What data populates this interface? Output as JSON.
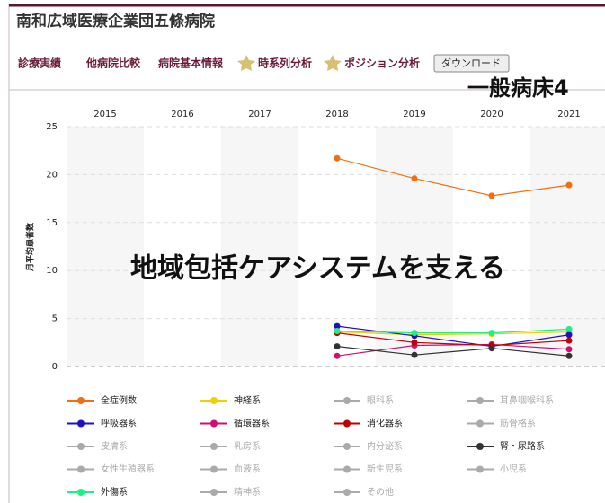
{
  "header": {
    "title": "南和広域医療企業団五條病院",
    "nav": [
      "診療実績",
      "他病院比較",
      "病院基本情報",
      "時系列分析",
      "ポジション分析"
    ],
    "button": "ダウンロード"
  },
  "overlay": {
    "top": "一般病床4",
    "center": "地域包括ケアシステムを支える"
  },
  "chart_data": {
    "type": "line",
    "ylabel": "月平均患者数",
    "categories": [
      "2015",
      "2016",
      "2017",
      "2018",
      "2019",
      "2020",
      "2021"
    ],
    "ylim": [
      0,
      25
    ],
    "yticks": [
      0,
      5,
      10,
      15,
      20,
      25
    ],
    "grid": true,
    "series": [
      {
        "name": "全症例数",
        "color": "#f07010",
        "visible": true,
        "values": [
          null,
          null,
          null,
          21.7,
          19.6,
          17.8,
          18.9
        ]
      },
      {
        "name": "神経系",
        "color": "#f0d000",
        "visible": true,
        "values": [
          null,
          null,
          null,
          3.6,
          3.3,
          3.4,
          3.6
        ]
      },
      {
        "name": "眼科系",
        "color": "#aaaaaa",
        "visible": false,
        "values": [
          null,
          null,
          null,
          null,
          null,
          null,
          null
        ]
      },
      {
        "name": "耳鼻咽喉科系",
        "color": "#aaaaaa",
        "visible": false,
        "values": [
          null,
          null,
          null,
          null,
          null,
          null,
          null
        ]
      },
      {
        "name": "呼吸器系",
        "color": "#2010c0",
        "visible": true,
        "values": [
          null,
          null,
          null,
          4.2,
          3.2,
          2.1,
          3.3
        ]
      },
      {
        "name": "循環器系",
        "color": "#d01070",
        "visible": true,
        "values": [
          null,
          null,
          null,
          1.1,
          2.2,
          2.3,
          1.8
        ]
      },
      {
        "name": "消化器系",
        "color": "#c00000",
        "visible": true,
        "values": [
          null,
          null,
          null,
          3.5,
          2.5,
          2.2,
          2.7
        ]
      },
      {
        "name": "筋骨格系",
        "color": "#aaaaaa",
        "visible": false,
        "values": [
          null,
          null,
          null,
          null,
          null,
          null,
          null
        ]
      },
      {
        "name": "皮膚系",
        "color": "#aaaaaa",
        "visible": false,
        "values": [
          null,
          null,
          null,
          null,
          null,
          null,
          null
        ]
      },
      {
        "name": "乳房系",
        "color": "#aaaaaa",
        "visible": false,
        "values": [
          null,
          null,
          null,
          null,
          null,
          null,
          null
        ]
      },
      {
        "name": "内分泌系",
        "color": "#aaaaaa",
        "visible": false,
        "values": [
          null,
          null,
          null,
          null,
          null,
          null,
          null
        ]
      },
      {
        "name": "腎・尿路系",
        "color": "#333333",
        "visible": true,
        "values": [
          null,
          null,
          null,
          2.1,
          1.2,
          1.9,
          1.1
        ]
      },
      {
        "name": "女性生殖器系",
        "color": "#aaaaaa",
        "visible": false,
        "values": [
          null,
          null,
          null,
          null,
          null,
          null,
          null
        ]
      },
      {
        "name": "血液系",
        "color": "#aaaaaa",
        "visible": false,
        "values": [
          null,
          null,
          null,
          null,
          null,
          null,
          null
        ]
      },
      {
        "name": "新生児系",
        "color": "#aaaaaa",
        "visible": false,
        "values": [
          null,
          null,
          null,
          null,
          null,
          null,
          null
        ]
      },
      {
        "name": "小児系",
        "color": "#aaaaaa",
        "visible": false,
        "values": [
          null,
          null,
          null,
          null,
          null,
          null,
          null
        ]
      },
      {
        "name": "外傷系",
        "color": "#20f080",
        "visible": true,
        "values": [
          null,
          null,
          null,
          3.7,
          3.5,
          3.5,
          3.9
        ]
      },
      {
        "name": "精神系",
        "color": "#aaaaaa",
        "visible": false,
        "values": [
          null,
          null,
          null,
          null,
          null,
          null,
          null
        ]
      },
      {
        "name": "その他",
        "color": "#aaaaaa",
        "visible": false,
        "values": [
          null,
          null,
          null,
          null,
          null,
          null,
          null
        ]
      }
    ]
  }
}
